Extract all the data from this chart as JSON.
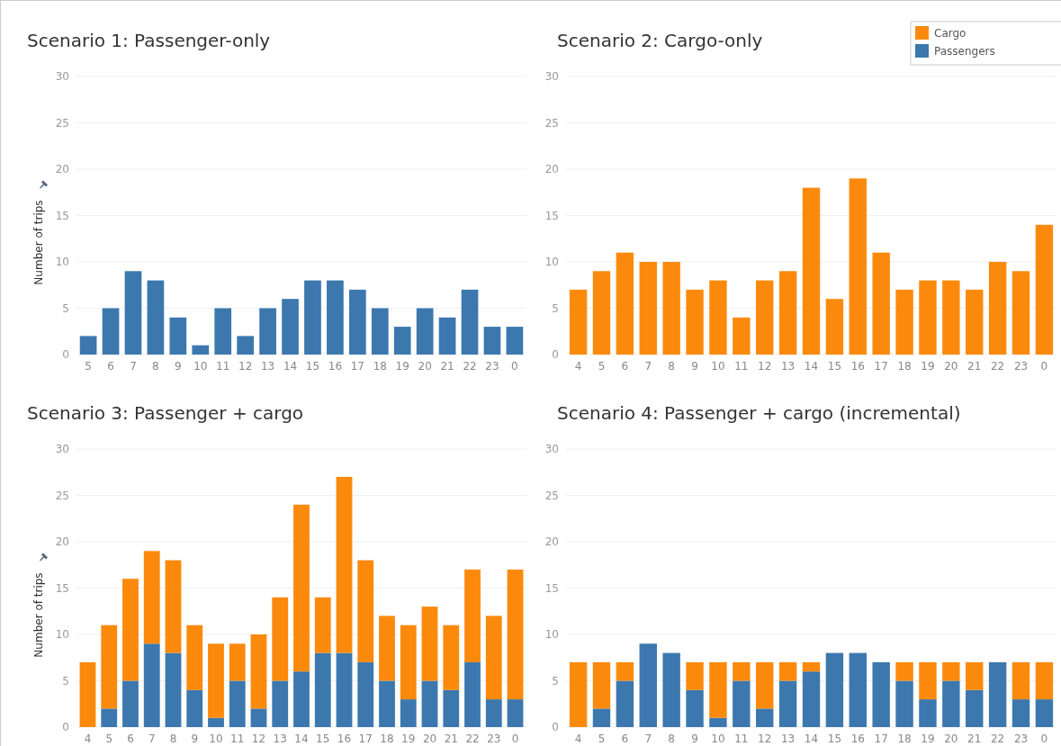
{
  "chart_data": [
    {
      "type": "bar",
      "title": "Scenario 1: Passenger-only",
      "ylabel": "Number of trips",
      "categories": [
        "5",
        "6",
        "7",
        "8",
        "9",
        "10",
        "11",
        "12",
        "13",
        "14",
        "15",
        "16",
        "17",
        "18",
        "19",
        "20",
        "21",
        "22",
        "23",
        "0"
      ],
      "series": [
        {
          "color": "#3c78ae",
          "values": [
            2,
            5,
            9,
            8,
            4,
            1,
            5,
            2,
            5,
            6,
            8,
            8,
            7,
            5,
            3,
            5,
            4,
            7,
            3,
            3
          ]
        }
      ],
      "ylim": [
        0,
        30
      ],
      "yticks": [
        0,
        5,
        10,
        15,
        20,
        25,
        30
      ],
      "grid": "y"
    },
    {
      "type": "bar",
      "title": "Scenario 2: Cargo-only",
      "categories": [
        "4",
        "5",
        "6",
        "7",
        "8",
        "9",
        "10",
        "11",
        "12",
        "13",
        "14",
        "15",
        "16",
        "17",
        "18",
        "19",
        "20",
        "21",
        "22",
        "23",
        "0"
      ],
      "series": [
        {
          "name": "Cargo",
          "color": "#fb8a0c",
          "values": [
            7,
            9,
            11,
            10,
            10,
            7,
            8,
            4,
            8,
            9,
            18,
            6,
            19,
            11,
            7,
            8,
            8,
            7,
            10,
            9,
            14
          ]
        },
        {
          "name": "Passengers",
          "color": "#3c78ae",
          "values": [
            null,
            null,
            null,
            null,
            null,
            null,
            null,
            null,
            null,
            null,
            null,
            null,
            null,
            null,
            null,
            null,
            null,
            null,
            null,
            null,
            null
          ]
        }
      ],
      "ylim": [
        0,
        30
      ],
      "yticks": [
        0,
        5,
        10,
        15,
        20,
        25,
        30
      ],
      "grid": "y",
      "legend": "top right"
    },
    {
      "type": "bar",
      "title": "Scenario 3: Passenger + cargo",
      "ylabel": "Number of trips",
      "stacked": true,
      "categories": [
        "4",
        "5",
        "6",
        "7",
        "8",
        "9",
        "10",
        "11",
        "12",
        "13",
        "14",
        "15",
        "16",
        "17",
        "18",
        "19",
        "20",
        "21",
        "22",
        "23",
        "0"
      ],
      "series": [
        {
          "color": "#3c78ae",
          "values": [
            0,
            2,
            5,
            9,
            8,
            4,
            1,
            5,
            2,
            5,
            6,
            8,
            8,
            7,
            5,
            3,
            5,
            4,
            7,
            3,
            3
          ]
        },
        {
          "color": "#fb8a0c",
          "values": [
            7,
            9,
            11,
            10,
            10,
            7,
            8,
            4,
            8,
            9,
            18,
            6,
            19,
            11,
            7,
            8,
            8,
            7,
            10,
            9,
            14
          ]
        }
      ],
      "ylim": [
        0,
        30
      ],
      "yticks": [
        0,
        5,
        10,
        15,
        20,
        25,
        30
      ],
      "grid": "y"
    },
    {
      "type": "bar",
      "title": "Scenario 4: Passenger + cargo (incremental)",
      "stacked": true,
      "categories": [
        "4",
        "5",
        "6",
        "7",
        "8",
        "9",
        "10",
        "11",
        "12",
        "13",
        "14",
        "15",
        "16",
        "17",
        "18",
        "19",
        "20",
        "21",
        "22",
        "23",
        "0"
      ],
      "series": [
        {
          "color": "#3c78ae",
          "values": [
            0,
            2,
            5,
            9,
            8,
            4,
            1,
            5,
            2,
            5,
            6,
            8,
            8,
            7,
            5,
            3,
            5,
            4,
            7,
            3,
            3
          ]
        },
        {
          "color": "#fb8a0c",
          "values": [
            7,
            5,
            2,
            0,
            0,
            3,
            6,
            2,
            5,
            2,
            1,
            0,
            0,
            0,
            2,
            4,
            2,
            3,
            0,
            4,
            4
          ]
        }
      ],
      "ylim": [
        0,
        30
      ],
      "yticks": [
        0,
        5,
        10,
        15,
        20,
        25,
        30
      ],
      "grid": "y"
    }
  ]
}
